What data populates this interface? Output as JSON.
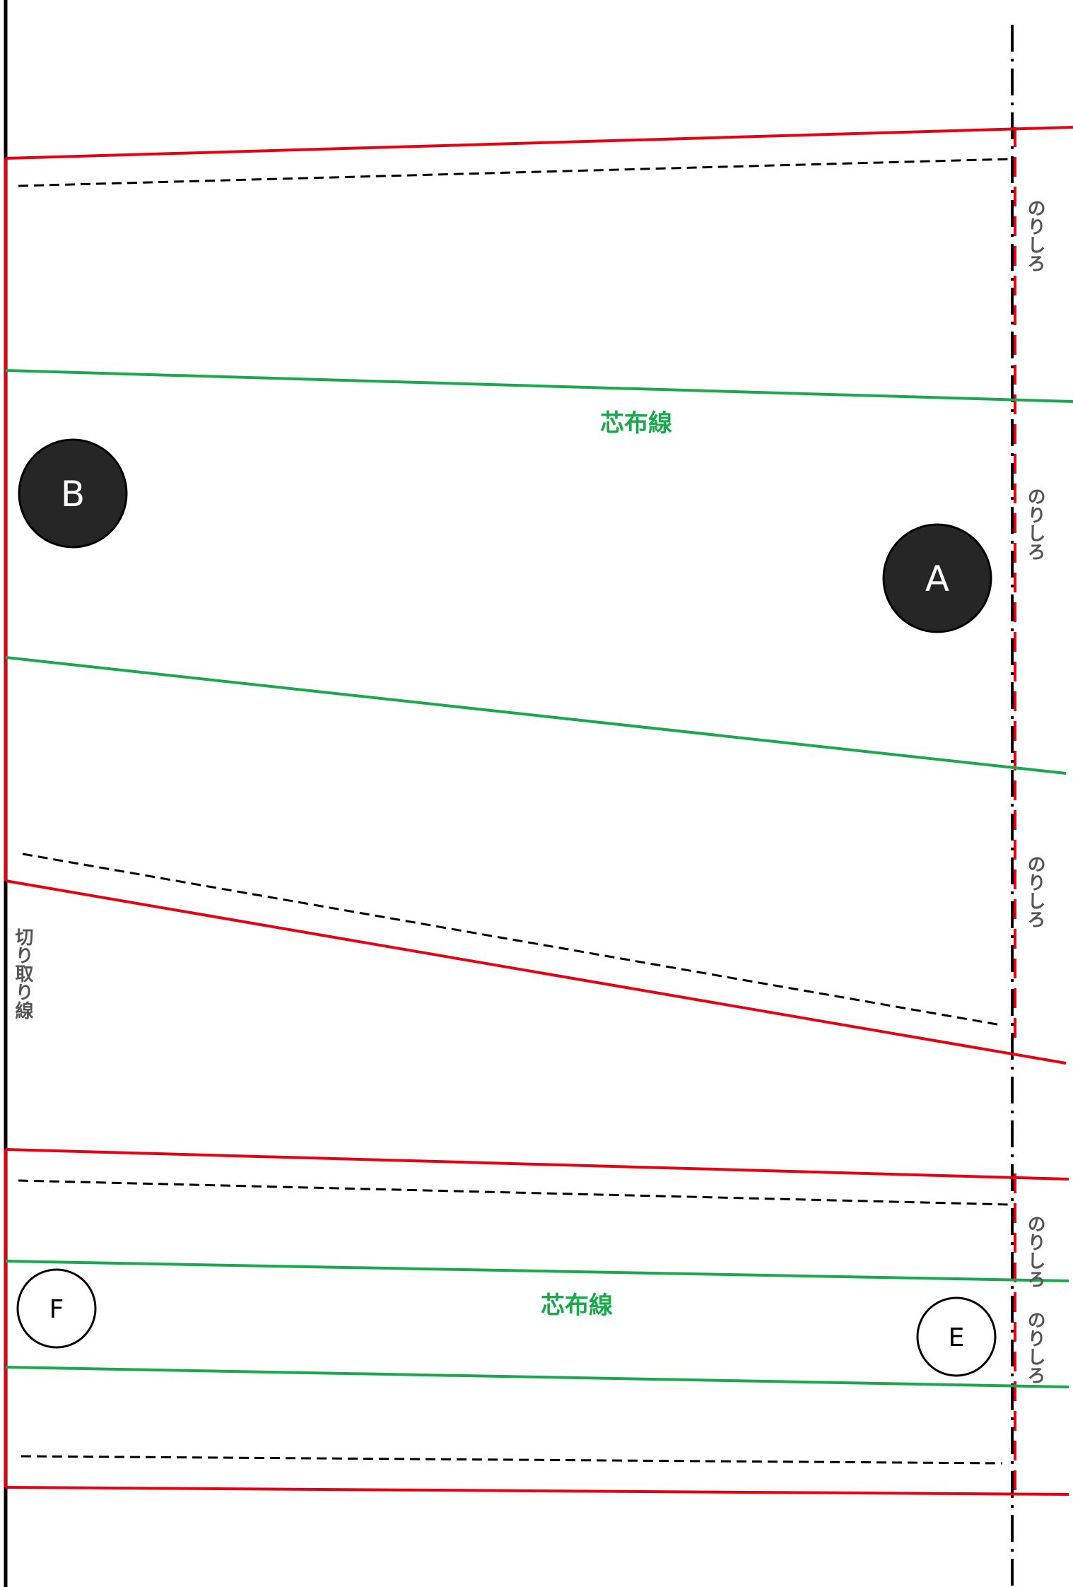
{
  "colors": {
    "cut_line": "#e60012",
    "interfacing_line": "#1aa84c",
    "fold_edge": "#000000",
    "stitch_line": "#000000",
    "dark_circle_fill": "#262626",
    "label_gray": "#555555"
  },
  "labels": {
    "interfacing_top": "芯布線",
    "interfacing_bottom": "芯布線",
    "glue_margin": "のりしろ",
    "cut_line": "切り取り線"
  },
  "markers": {
    "a": "A",
    "b": "B",
    "e": "E",
    "f": "F"
  }
}
